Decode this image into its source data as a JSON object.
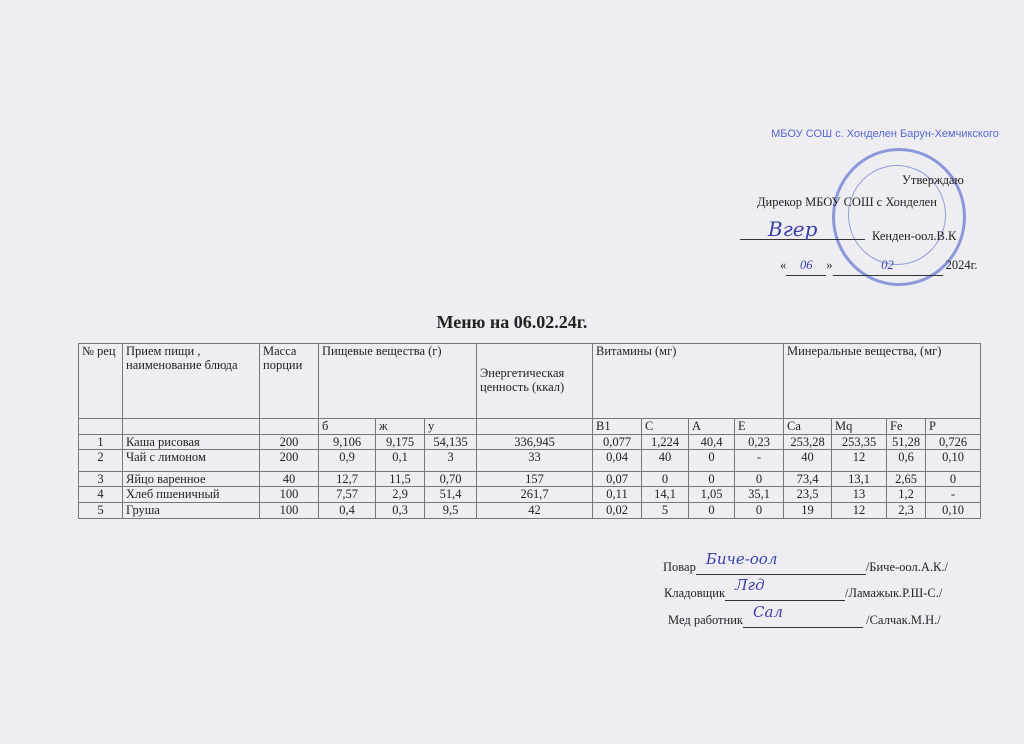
{
  "approval": {
    "approved": "Утверждаю",
    "director": "Дирекор  МБОУ СОШ с Хонделен",
    "name": "Кенден-оол.В.К",
    "day": "06",
    "month": "02",
    "year": "2024г.",
    "signature_text": "Вгер"
  },
  "stamp": {
    "text": "МБОУ СОШ с. Хонделен Барун-Хемчикского"
  },
  "title": "Меню на 06.02.24г.",
  "table": {
    "headers": {
      "num": "№ рец",
      "meal": "Прием пищи , наименование блюда",
      "mass": "Масса порции",
      "nutrients": "Пищевые вещества (г)",
      "energy": "Энергетическая ценность (ккал)",
      "vitamins": "Витамины (мг)",
      "minerals": "Минеральные вещества, (мг)"
    },
    "subheaders": [
      "б",
      "ж",
      "у",
      "B1",
      "C",
      "A",
      "E",
      "Ca",
      "Mq",
      "Fe",
      "P"
    ],
    "rows": [
      [
        "1",
        "Каша рисовая",
        "200",
        "9,106",
        "9,175",
        "54,135",
        "336,945",
        "0,077",
        "1,224",
        "40,4",
        "0,23",
        "253,28",
        "253,35",
        "51,28",
        "0,726"
      ],
      [
        "2",
        "Чай с лимоном",
        "200",
        "0,9",
        "0,1",
        "3",
        "33",
        "0,04",
        "40",
        "0",
        "-",
        "40",
        "12",
        "0,6",
        "0,10"
      ],
      [
        "3",
        "Яйцо варенное",
        "40",
        "12,7",
        "11,5",
        "0,70",
        "157",
        "0,07",
        "0",
        "0",
        "0",
        "73,4",
        "13,1",
        "2,65",
        "0"
      ],
      [
        "4",
        "Хлеб пшеничный",
        "100",
        "7,57",
        "2,9",
        "51,4",
        "261,7",
        "0,11",
        "14,1",
        "1,05",
        "35,1",
        "23,5",
        "13",
        "1,2",
        "-"
      ],
      [
        "5",
        "Груша",
        "100",
        "0,4",
        "0,3",
        "9,5",
        "42",
        "0,02",
        "5",
        "0",
        "0",
        "19",
        "12",
        "2,3",
        "0,10"
      ]
    ]
  },
  "signatures": [
    {
      "role": "Повар",
      "name": "/Биче-оол.А.К./",
      "scrawl": "Биче-оол"
    },
    {
      "role": "Кладовщик",
      "name": "/Ламажык.Р.Ш-С./",
      "scrawl": "Лгд"
    },
    {
      "role": "Мед работник",
      "name": " /Салчак.М.Н./",
      "scrawl": "Сал"
    }
  ]
}
